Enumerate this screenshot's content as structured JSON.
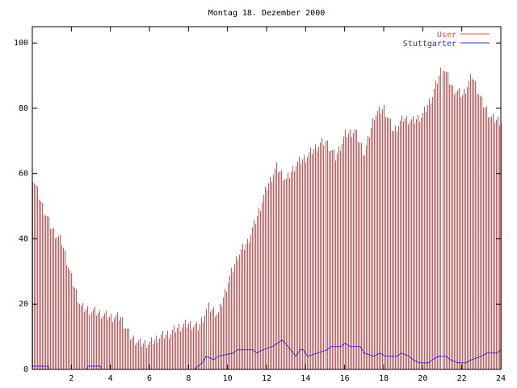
{
  "chart_data": {
    "type": "bar",
    "title": "Montag 18. Dezember 2000",
    "xlabel": "",
    "ylabel": "",
    "xlim": [
      0,
      24
    ],
    "ylim": [
      0,
      105
    ],
    "x_ticks": [
      "2",
      "4",
      "6",
      "8",
      "10",
      "12",
      "14",
      "16",
      "18",
      "20",
      "22",
      "24"
    ],
    "y_ticks": [
      "0",
      "20",
      "40",
      "60",
      "80",
      "100"
    ],
    "legend_position": "top-right",
    "series": [
      {
        "name": "User",
        "mark": "impulses",
        "color": "#e05050",
        "hourly": [
          {
            "x": 0,
            "y": 59
          },
          {
            "x": 0.5,
            "y": 50
          },
          {
            "x": 1,
            "y": 43
          },
          {
            "x": 1.5,
            "y": 39
          },
          {
            "x": 2,
            "y": 28
          },
          {
            "x": 2.5,
            "y": 19
          },
          {
            "x": 3,
            "y": 18
          },
          {
            "x": 3.5,
            "y": 17
          },
          {
            "x": 4,
            "y": 16
          },
          {
            "x": 4.5,
            "y": 16
          },
          {
            "x": 5,
            "y": 10
          },
          {
            "x": 5.5,
            "y": 8
          },
          {
            "x": 6,
            "y": 8
          },
          {
            "x": 6.5,
            "y": 10
          },
          {
            "x": 7,
            "y": 11
          },
          {
            "x": 7.5,
            "y": 13
          },
          {
            "x": 8,
            "y": 14
          },
          {
            "x": 8.5,
            "y": 13
          },
          {
            "x": 9,
            "y": 19
          },
          {
            "x": 9.5,
            "y": 17
          },
          {
            "x": 10,
            "y": 27
          },
          {
            "x": 10.5,
            "y": 35
          },
          {
            "x": 11,
            "y": 39
          },
          {
            "x": 11.5,
            "y": 47
          },
          {
            "x": 12,
            "y": 56
          },
          {
            "x": 12.5,
            "y": 62
          },
          {
            "x": 13,
            "y": 58
          },
          {
            "x": 13.5,
            "y": 63
          },
          {
            "x": 14,
            "y": 65
          },
          {
            "x": 14.5,
            "y": 68
          },
          {
            "x": 15,
            "y": 70
          },
          {
            "x": 15.5,
            "y": 65
          },
          {
            "x": 16,
            "y": 72
          },
          {
            "x": 16.5,
            "y": 73
          },
          {
            "x": 17,
            "y": 66
          },
          {
            "x": 17.5,
            "y": 78
          },
          {
            "x": 18,
            "y": 80
          },
          {
            "x": 18.5,
            "y": 73
          },
          {
            "x": 19,
            "y": 77
          },
          {
            "x": 19.5,
            "y": 76
          },
          {
            "x": 20,
            "y": 78
          },
          {
            "x": 20.5,
            "y": 84
          },
          {
            "x": 21,
            "y": 93
          },
          {
            "x": 21.5,
            "y": 86
          },
          {
            "x": 22,
            "y": 84
          },
          {
            "x": 22.5,
            "y": 90
          },
          {
            "x": 23,
            "y": 82
          },
          {
            "x": 23.5,
            "y": 77
          },
          {
            "x": 24,
            "y": 76
          }
        ]
      },
      {
        "name": "Stuttgarter",
        "mark": "line",
        "color": "#3030c0",
        "points": [
          {
            "x": 0,
            "y": 1
          },
          {
            "x": 0.8,
            "y": 1
          },
          {
            "x": 0.85,
            "y": 0
          },
          {
            "x": 2.8,
            "y": 0
          },
          {
            "x": 2.85,
            "y": 1
          },
          {
            "x": 3.5,
            "y": 1
          },
          {
            "x": 3.55,
            "y": 0
          },
          {
            "x": 8.3,
            "y": 0
          },
          {
            "x": 8.5,
            "y": 1
          },
          {
            "x": 8.7,
            "y": 2
          },
          {
            "x": 8.9,
            "y": 4
          },
          {
            "x": 9.3,
            "y": 3
          },
          {
            "x": 9.5,
            "y": 4
          },
          {
            "x": 10.3,
            "y": 5
          },
          {
            "x": 10.5,
            "y": 6
          },
          {
            "x": 11.3,
            "y": 6
          },
          {
            "x": 11.5,
            "y": 5
          },
          {
            "x": 11.8,
            "y": 6
          },
          {
            "x": 12.3,
            "y": 7
          },
          {
            "x": 12.8,
            "y": 9
          },
          {
            "x": 13.1,
            "y": 7
          },
          {
            "x": 13.5,
            "y": 4
          },
          {
            "x": 13.7,
            "y": 6
          },
          {
            "x": 13.9,
            "y": 6
          },
          {
            "x": 14.1,
            "y": 4
          },
          {
            "x": 14.6,
            "y": 5
          },
          {
            "x": 15.1,
            "y": 6
          },
          {
            "x": 15.3,
            "y": 7
          },
          {
            "x": 15.8,
            "y": 7
          },
          {
            "x": 16.0,
            "y": 8
          },
          {
            "x": 16.3,
            "y": 7
          },
          {
            "x": 16.8,
            "y": 7
          },
          {
            "x": 17.0,
            "y": 5
          },
          {
            "x": 17.5,
            "y": 4
          },
          {
            "x": 17.8,
            "y": 5
          },
          {
            "x": 18.1,
            "y": 4
          },
          {
            "x": 18.7,
            "y": 4
          },
          {
            "x": 18.9,
            "y": 5
          },
          {
            "x": 19.3,
            "y": 4
          },
          {
            "x": 19.5,
            "y": 3
          },
          {
            "x": 19.8,
            "y": 2
          },
          {
            "x": 20.3,
            "y": 2
          },
          {
            "x": 20.5,
            "y": 3
          },
          {
            "x": 20.8,
            "y": 4
          },
          {
            "x": 21.2,
            "y": 4
          },
          {
            "x": 21.4,
            "y": 3
          },
          {
            "x": 21.8,
            "y": 2
          },
          {
            "x": 22.2,
            "y": 2
          },
          {
            "x": 22.5,
            "y": 3
          },
          {
            "x": 23,
            "y": 4
          },
          {
            "x": 23.3,
            "y": 5
          },
          {
            "x": 23.8,
            "y": 5
          },
          {
            "x": 24,
            "y": 6
          }
        ]
      }
    ]
  }
}
